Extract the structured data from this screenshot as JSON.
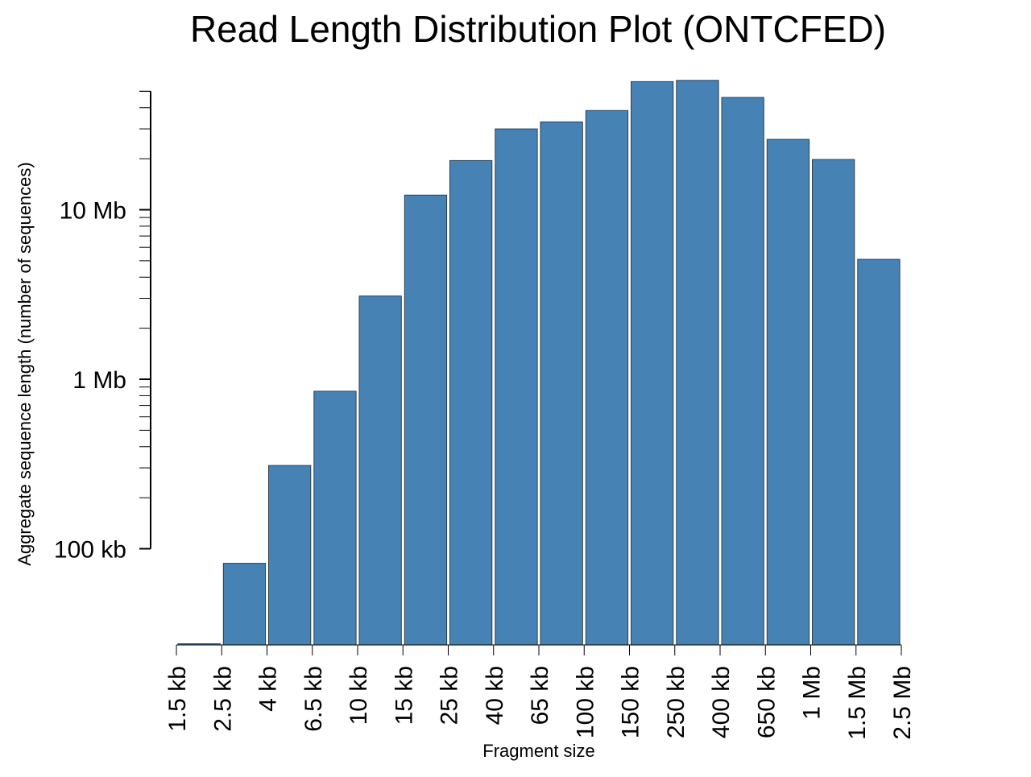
{
  "chart_data": {
    "type": "bar",
    "title": "Read Length Distribution Plot (ONTCFED)",
    "xlabel": "Fragment size",
    "ylabel": "Aggregate sequence length (number of sequences)",
    "yscale": "log",
    "ylim": [
      25000,
      60000000
    ],
    "y_tick_values": [
      100000,
      1000000,
      10000000
    ],
    "y_tick_labels": [
      "100 kb",
      "1 Mb",
      "10 Mb"
    ],
    "x_tick_labels": [
      "1.5 kb",
      "2.5 kb",
      "4 kb",
      "6.5 kb",
      "10 kb",
      "15 kb",
      "25 kb",
      "40 kb",
      "65 kb",
      "100 kb",
      "150 kb",
      "250 kb",
      "400 kb",
      "650 kb",
      "1 Mb",
      "1.5 Mb",
      "2.5 Mb"
    ],
    "values": [
      27500,
      82000,
      310000,
      850000,
      3100000,
      12200000,
      19500000,
      30000000,
      33000000,
      38500000,
      57000000,
      58000000,
      46000000,
      26000000,
      19800000,
      5100000
    ],
    "bar_color": "#4682b4",
    "grid": false,
    "legend": "none"
  }
}
